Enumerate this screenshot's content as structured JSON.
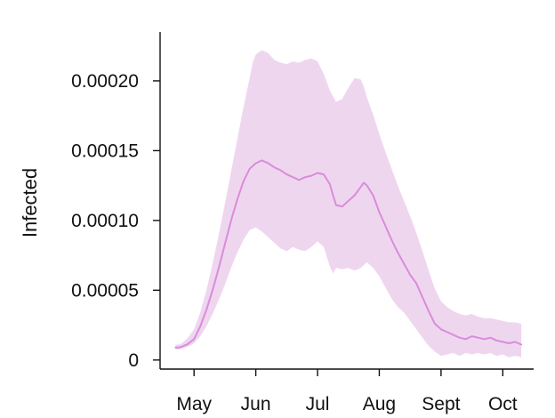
{
  "chart_data": {
    "type": "area",
    "title": "",
    "xlabel": "",
    "ylabel": "Infected",
    "x_ticks": [
      {
        "label": "May",
        "x": 0
      },
      {
        "label": "Jun",
        "x": 1
      },
      {
        "label": "Jul",
        "x": 2
      },
      {
        "label": "Aug",
        "x": 3
      },
      {
        "label": "Sept",
        "x": 4
      },
      {
        "label": "Oct",
        "x": 5
      }
    ],
    "y_ticks": [
      {
        "label": "0",
        "value": 0
      },
      {
        "label": "0.00005",
        "value": 5e-05
      },
      {
        "label": "0.00010",
        "value": 0.0001
      },
      {
        "label": "0.00015",
        "value": 0.00015
      },
      {
        "label": "0.00020",
        "value": 0.0002
      }
    ],
    "xlim": [
      -0.55,
      5.5
    ],
    "ylim": [
      -6.5e-06,
      0.000235
    ],
    "grid": false,
    "colors": {
      "line": "#d98cdb",
      "band": "#efd6ef",
      "axis": "#111111"
    },
    "series": [
      {
        "x": [
          -0.3,
          -0.25,
          -0.2,
          -0.1,
          0.0,
          0.1,
          0.2,
          0.3,
          0.4,
          0.5,
          0.6,
          0.7,
          0.8,
          0.9,
          0.95,
          1.0,
          1.1,
          1.2,
          1.3,
          1.4,
          1.5,
          1.6,
          1.7,
          1.8,
          1.9,
          2.0,
          2.1,
          2.2,
          2.25,
          2.3,
          2.4,
          2.5,
          2.6,
          2.7,
          2.75,
          2.8,
          2.9,
          3.0,
          3.1,
          3.2,
          3.3,
          3.4,
          3.5,
          3.6,
          3.7,
          3.8,
          3.9,
          4.0,
          4.1,
          4.2,
          4.3,
          4.4,
          4.5,
          4.6,
          4.7,
          4.8,
          4.9,
          5.0,
          5.1,
          5.2,
          5.3
        ],
        "mean": [
          9e-06,
          9e-06,
          9.5e-06,
          1.15e-05,
          1.5e-05,
          2.4e-05,
          3.6e-05,
          5e-05,
          6.6e-05,
          8.3e-05,
          0.0001,
          0.000115,
          0.000128,
          0.000137,
          0.000139,
          0.000141,
          0.000143,
          0.000141,
          0.000138,
          0.000136,
          0.000133,
          0.000131,
          0.000129,
          0.000131,
          0.000132,
          0.000134,
          0.000133,
          0.000126,
          0.000118,
          0.000111,
          0.00011,
          0.000114,
          0.000118,
          0.000124,
          0.000127,
          0.000125,
          0.000118,
          0.000106,
          9.6e-05,
          8.6e-05,
          7.7e-05,
          6.9e-05,
          6.1e-05,
          5.5e-05,
          4.5e-05,
          3.5e-05,
          2.6e-05,
          2.2e-05,
          2e-05,
          1.8e-05,
          1.6e-05,
          1.5e-05,
          1.7e-05,
          1.6e-05,
          1.5e-05,
          1.6e-05,
          1.4e-05,
          1.3e-05,
          1.2e-05,
          1.3e-05,
          1.1e-05
        ],
        "lower": [
          7.5e-06,
          7.5e-06,
          8e-06,
          9.5e-06,
          1.2e-05,
          1.7e-05,
          2.4e-05,
          3.3e-05,
          4.3e-05,
          5.4e-05,
          6.6e-05,
          7.7e-05,
          8.6e-05,
          9.3e-05,
          9.4e-05,
          9.5e-05,
          9.2e-05,
          8.8e-05,
          8.4e-05,
          8e-05,
          7.8e-05,
          8.1e-05,
          7.9e-05,
          7.8e-05,
          8.1e-05,
          8.5e-05,
          8.1e-05,
          6.7e-05,
          6.2e-05,
          6.6e-05,
          6.5e-05,
          6.6e-05,
          6.4e-05,
          6.6e-05,
          6.8e-05,
          7e-05,
          6.6e-05,
          6e-05,
          5.2e-05,
          4.4e-05,
          3.8e-05,
          3.4e-05,
          2.8e-05,
          2.2e-05,
          1.6e-05,
          1e-05,
          6e-06,
          3e-06,
          4e-06,
          5e-06,
          3e-06,
          5e-06,
          4e-06,
          5e-06,
          4e-06,
          5e-06,
          3e-06,
          4e-06,
          2e-06,
          3e-06,
          2e-06
        ],
        "upper": [
          1.1e-05,
          1.1e-05,
          1.2e-05,
          1.6e-05,
          2.2e-05,
          3.4e-05,
          5e-05,
          6.9e-05,
          9e-05,
          0.000112,
          0.000135,
          0.000158,
          0.000181,
          0.000202,
          0.000213,
          0.000219,
          0.000222,
          0.00022,
          0.000215,
          0.000213,
          0.000212,
          0.000214,
          0.000213,
          0.000215,
          0.000216,
          0.000214,
          0.000205,
          0.000193,
          0.000189,
          0.000185,
          0.000187,
          0.000195,
          0.000202,
          0.000201,
          0.000196,
          0.000188,
          0.000176,
          0.000162,
          0.000149,
          0.000137,
          0.000125,
          0.000114,
          0.000103,
          9.1e-05,
          7.8e-05,
          6.4e-05,
          5.1e-05,
          4.2e-05,
          3.8e-05,
          3.5e-05,
          3.3e-05,
          3.2e-05,
          3.3e-05,
          3.1e-05,
          3e-05,
          3e-05,
          2.9e-05,
          2.8e-05,
          2.7e-05,
          2.7e-05,
          2.6e-05
        ]
      }
    ]
  }
}
